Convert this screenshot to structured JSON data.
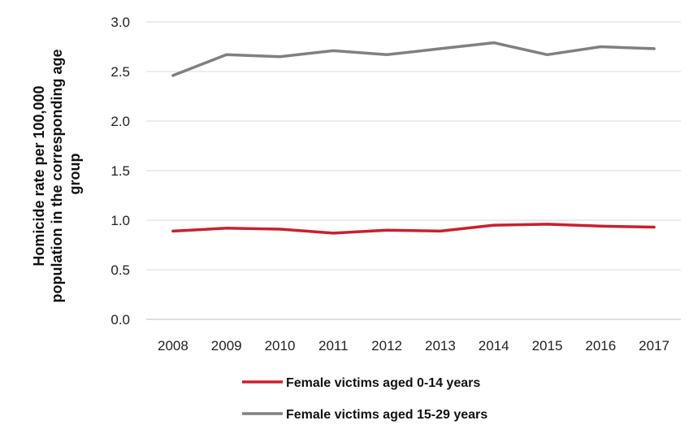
{
  "chart_data": {
    "type": "line",
    "title": "",
    "xlabel": "",
    "ylabel": "Homicide rate per 100,000 population in the corresponding age group",
    "ylabel_lines": [
      "Homicide rate per 100,000",
      "population in the corresponding age",
      "group"
    ],
    "categories": [
      "2008",
      "2009",
      "2010",
      "2011",
      "2012",
      "2013",
      "2014",
      "2015",
      "2016",
      "2017"
    ],
    "ylim": [
      0,
      3
    ],
    "yticks": [
      "0.0",
      "0.5",
      "1.0",
      "1.5",
      "2.0",
      "2.5",
      "3.0"
    ],
    "grid": true,
    "legend_position": "bottom",
    "series": [
      {
        "name": "Female victims aged 0-14 years",
        "color": "#c8202f",
        "values": [
          0.89,
          0.92,
          0.91,
          0.87,
          0.9,
          0.89,
          0.95,
          0.96,
          0.94,
          0.93
        ]
      },
      {
        "name": "Female victims aged 15-29 years",
        "color": "#808080",
        "values": [
          2.46,
          2.67,
          2.65,
          2.71,
          2.67,
          2.73,
          2.79,
          2.67,
          2.75,
          2.73
        ]
      }
    ]
  }
}
